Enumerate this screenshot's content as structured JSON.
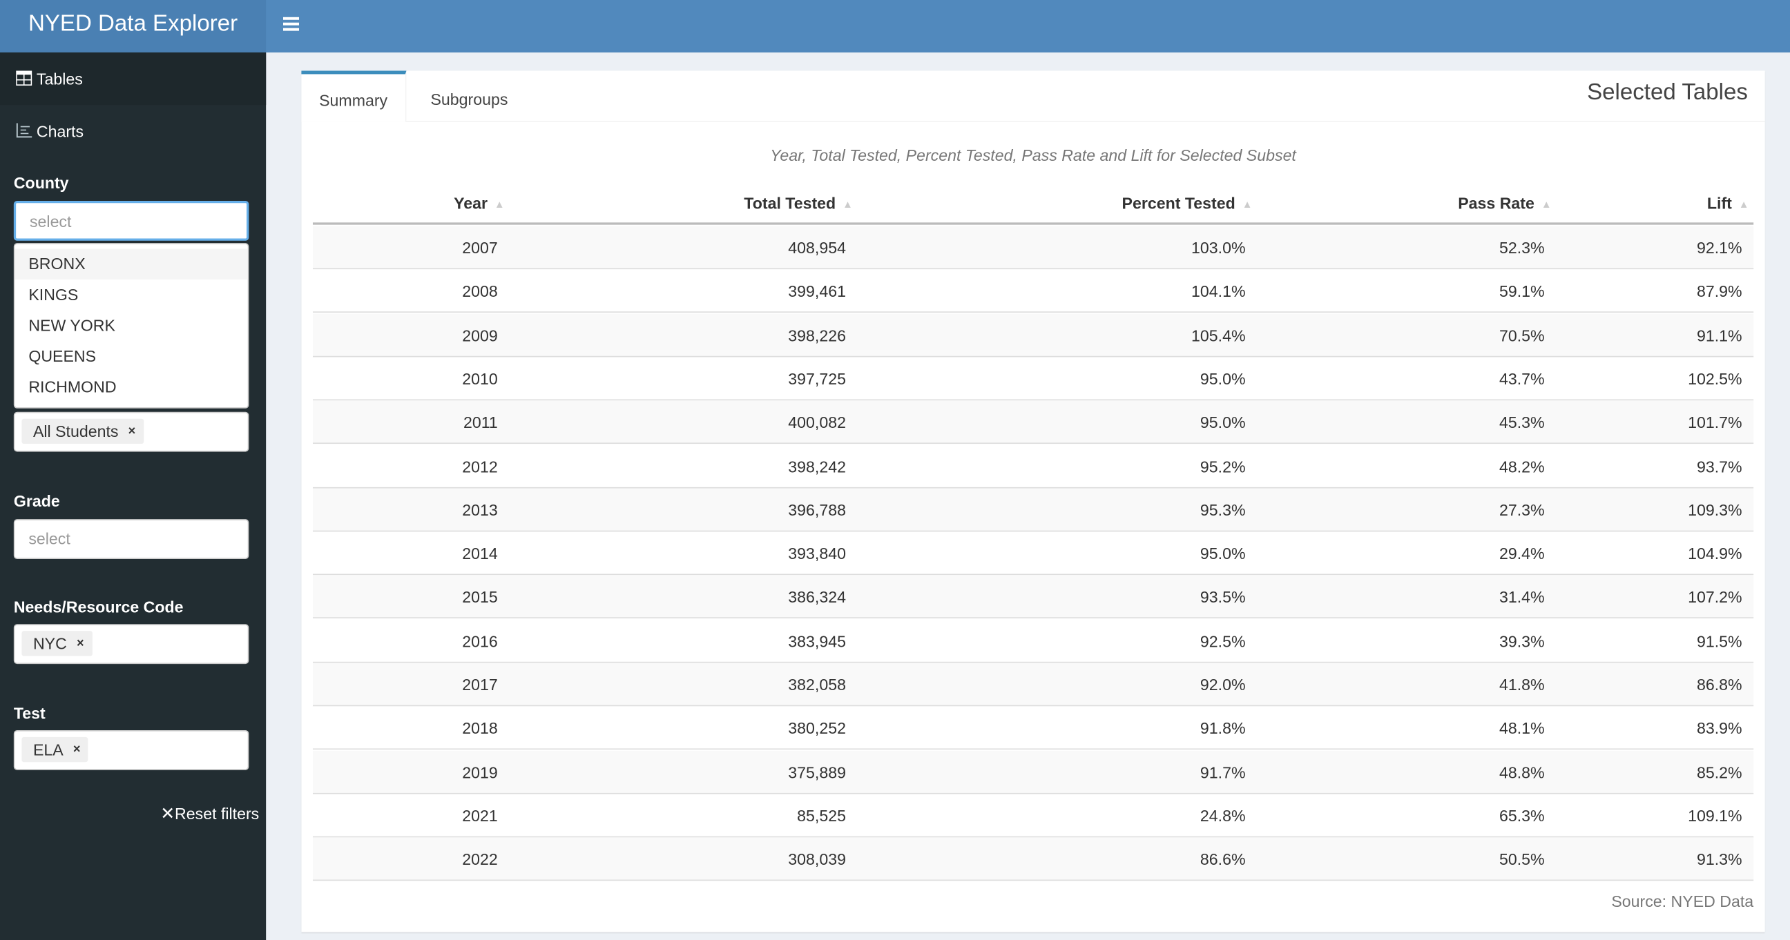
{
  "header": {
    "title": "NYED Data Explorer"
  },
  "sidebar": {
    "nav": [
      "Tables",
      "Charts"
    ],
    "county": {
      "label": "County",
      "placeholder": "select",
      "options": [
        "BRONX",
        "KINGS",
        "NEW YORK",
        "QUEENS",
        "RICHMOND"
      ]
    },
    "subgroup": {
      "tags": [
        "All Students"
      ]
    },
    "grade": {
      "label": "Grade",
      "placeholder": "select"
    },
    "needs": {
      "label": "Needs/Resource Code",
      "tags": [
        "NYC"
      ]
    },
    "test": {
      "label": "Test",
      "tags": [
        "ELA"
      ]
    },
    "reset": "Reset filters"
  },
  "main": {
    "tabs": [
      "Summary",
      "Subgroups"
    ],
    "box_title": "Selected Tables",
    "table": {
      "caption": "Year, Total Tested, Percent Tested, Pass Rate and Lift for Selected Subset",
      "columns": [
        "Year",
        "Total Tested",
        "Percent Tested",
        "Pass Rate",
        "Lift"
      ],
      "rows": [
        [
          "2007",
          "408,954",
          "103.0%",
          "52.3%",
          "92.1%"
        ],
        [
          "2008",
          "399,461",
          "104.1%",
          "59.1%",
          "87.9%"
        ],
        [
          "2009",
          "398,226",
          "105.4%",
          "70.5%",
          "91.1%"
        ],
        [
          "2010",
          "397,725",
          "95.0%",
          "43.7%",
          "102.5%"
        ],
        [
          "2011",
          "400,082",
          "95.0%",
          "45.3%",
          "101.7%"
        ],
        [
          "2012",
          "398,242",
          "95.2%",
          "48.2%",
          "93.7%"
        ],
        [
          "2013",
          "396,788",
          "95.3%",
          "27.3%",
          "109.3%"
        ],
        [
          "2014",
          "393,840",
          "95.0%",
          "29.4%",
          "104.9%"
        ],
        [
          "2015",
          "386,324",
          "93.5%",
          "31.4%",
          "107.2%"
        ],
        [
          "2016",
          "383,945",
          "92.5%",
          "39.3%",
          "91.5%"
        ],
        [
          "2017",
          "382,058",
          "92.0%",
          "41.8%",
          "86.8%"
        ],
        [
          "2018",
          "380,252",
          "91.8%",
          "48.1%",
          "83.9%"
        ],
        [
          "2019",
          "375,889",
          "91.7%",
          "48.8%",
          "85.2%"
        ],
        [
          "2021",
          "85,525",
          "24.8%",
          "65.3%",
          "109.1%"
        ],
        [
          "2022",
          "308,039",
          "86.6%",
          "50.5%",
          "91.3%"
        ]
      ]
    },
    "source": "Source: NYED Data"
  }
}
